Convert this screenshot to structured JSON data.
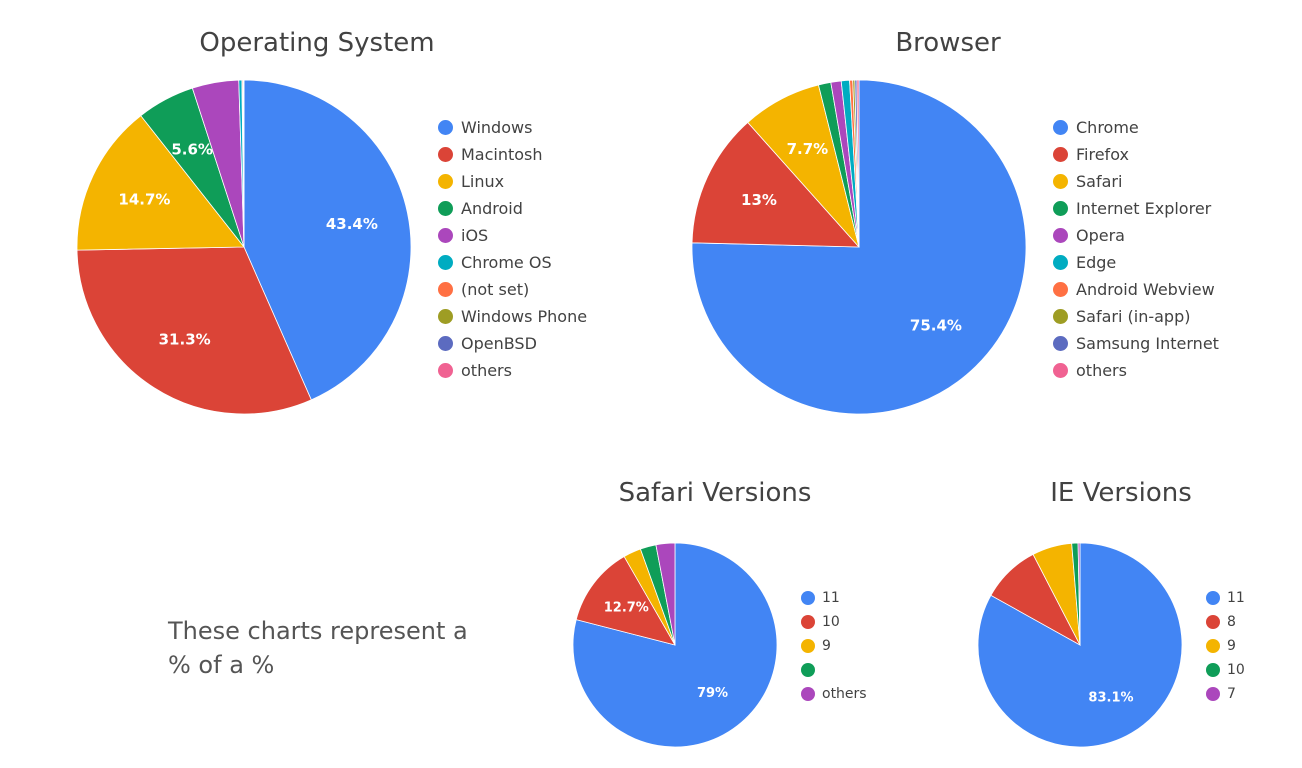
{
  "note": "These charts represent a % of a %",
  "chart_data": [
    {
      "type": "pie",
      "title": "Operating System",
      "legend_position": "right",
      "slices": [
        {
          "label": "Windows",
          "value": 43.4,
          "data_label": "43.4%",
          "color": "#4285F4"
        },
        {
          "label": "Macintosh",
          "value": 31.3,
          "data_label": "31.3%",
          "color": "#DB4437"
        },
        {
          "label": "Linux",
          "value": 14.7,
          "data_label": "14.7%",
          "color": "#F4B400"
        },
        {
          "label": "Android",
          "value": 5.6,
          "data_label": "5.6%",
          "color": "#0F9D58"
        },
        {
          "label": "iOS",
          "value": 4.5,
          "data_label": "",
          "color": "#AB47BC"
        },
        {
          "label": "Chrome OS",
          "value": 0.3,
          "data_label": "",
          "color": "#00ACC1"
        },
        {
          "label": "(not set)",
          "value": 0.1,
          "data_label": "",
          "color": "#FF7043"
        },
        {
          "label": "Windows Phone",
          "value": 0.05,
          "data_label": "",
          "color": "#9E9D24"
        },
        {
          "label": "OpenBSD",
          "value": 0.03,
          "data_label": "",
          "color": "#5C6BC0"
        },
        {
          "label": "others",
          "value": 0.02,
          "data_label": "",
          "color": "#F06292"
        }
      ]
    },
    {
      "type": "pie",
      "title": "Browser",
      "legend_position": "right",
      "slices": [
        {
          "label": "Chrome",
          "value": 75.4,
          "data_label": "75.4%",
          "color": "#4285F4"
        },
        {
          "label": "Firefox",
          "value": 13,
          "data_label": "13%",
          "color": "#DB4437"
        },
        {
          "label": "Safari",
          "value": 7.7,
          "data_label": "7.7%",
          "color": "#F4B400"
        },
        {
          "label": "Internet Explorer",
          "value": 1.2,
          "data_label": "",
          "color": "#0F9D58"
        },
        {
          "label": "Opera",
          "value": 1.0,
          "data_label": "",
          "color": "#AB47BC"
        },
        {
          "label": "Edge",
          "value": 0.8,
          "data_label": "",
          "color": "#00ACC1"
        },
        {
          "label": "Android Webview",
          "value": 0.3,
          "data_label": "",
          "color": "#FF7043"
        },
        {
          "label": "Safari (in-app)",
          "value": 0.2,
          "data_label": "",
          "color": "#9E9D24"
        },
        {
          "label": "Samsung Internet",
          "value": 0.2,
          "data_label": "",
          "color": "#5C6BC0"
        },
        {
          "label": "others",
          "value": 0.2,
          "data_label": "",
          "color": "#F06292"
        }
      ]
    },
    {
      "type": "pie",
      "title": "Safari Versions",
      "legend_position": "right",
      "slices": [
        {
          "label": "11",
          "value": 79,
          "data_label": "79%",
          "color": "#4285F4"
        },
        {
          "label": "10",
          "value": 12.7,
          "data_label": "12.7%",
          "color": "#DB4437"
        },
        {
          "label": "9",
          "value": 2.8,
          "data_label": "",
          "color": "#F4B400"
        },
        {
          "label": "",
          "value": 2.5,
          "data_label": "",
          "color": "#0F9D58"
        },
        {
          "label": "others",
          "value": 3.0,
          "data_label": "",
          "color": "#AB47BC"
        }
      ]
    },
    {
      "type": "pie",
      "title": "IE Versions",
      "legend_position": "right",
      "slices": [
        {
          "label": "11",
          "value": 83.1,
          "data_label": "83.1%",
          "color": "#4285F4"
        },
        {
          "label": "8",
          "value": 9.3,
          "data_label": "",
          "color": "#DB4437"
        },
        {
          "label": "9",
          "value": 6.3,
          "data_label": "",
          "color": "#F4B400"
        },
        {
          "label": "10",
          "value": 1.0,
          "data_label": "",
          "color": "#0F9D58"
        },
        {
          "label": "7",
          "value": 0.3,
          "data_label": "",
          "color": "#AB47BC"
        }
      ]
    }
  ]
}
